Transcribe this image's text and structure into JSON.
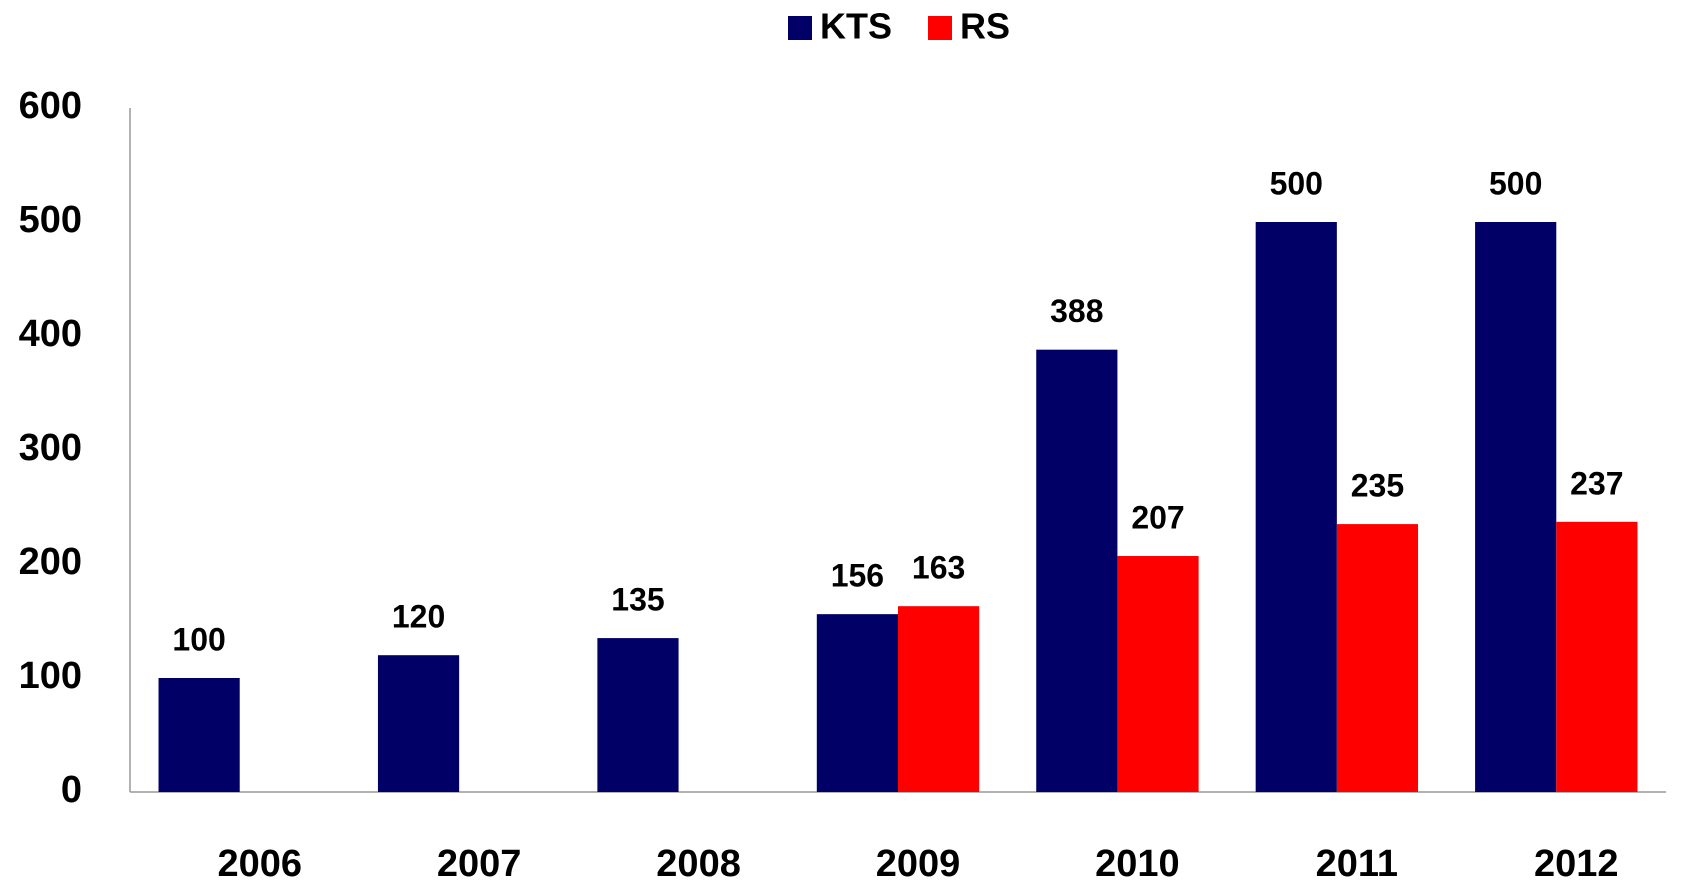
{
  "chart_data": {
    "type": "bar",
    "categories": [
      "2006",
      "2007",
      "2008",
      "2009",
      "2010",
      "2011",
      "2012"
    ],
    "series": [
      {
        "name": "KTS",
        "color": "#000066",
        "values": [
          100,
          120,
          135,
          156,
          388,
          500,
          500
        ]
      },
      {
        "name": "RS",
        "color": "#ff0000",
        "values": [
          null,
          null,
          null,
          163,
          207,
          235,
          237
        ]
      }
    ],
    "ylim": [
      0,
      600
    ],
    "yticks": [
      0,
      100,
      200,
      300,
      400,
      500,
      600
    ],
    "grid": false,
    "legend": "top"
  }
}
